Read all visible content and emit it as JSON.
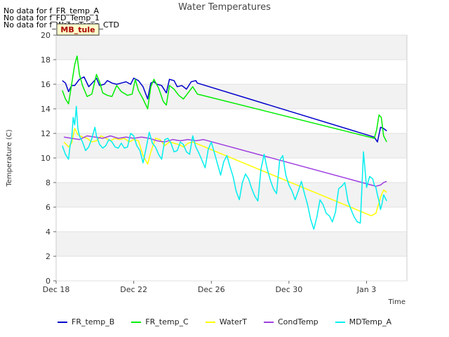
{
  "no_data_messages": [
    "No data for f_FR_temp_A",
    "No data for f_FD_Temp_1",
    "No data for f_WaterTemp_CTD"
  ],
  "badge": {
    "text": "MB_tule",
    "bg_color": "#ffffcc",
    "border_color": "#333333",
    "text_color": "#aa0000"
  },
  "chart_data": {
    "type": "line",
    "title": "Water Temperatures",
    "xlabel": "Time",
    "ylabel": "Temperature (C)",
    "ylim": [
      0,
      20
    ],
    "xlim": [
      0,
      22.6
    ],
    "x_unit": "days since Dec 18",
    "yticks": [
      0,
      2,
      4,
      6,
      8,
      10,
      12,
      14,
      16,
      18,
      20
    ],
    "xticks": [
      {
        "value": 0,
        "label": "Dec 18"
      },
      {
        "value": 5,
        "label": "Dec 22"
      },
      {
        "value": 10,
        "label": "Dec 26"
      },
      {
        "value": 15,
        "label": "Dec 30"
      },
      {
        "value": 20,
        "label": "Jan 3"
      }
    ],
    "band_color": "#f2f2f2",
    "series": [
      {
        "name": "FR_temp_B",
        "color": "#0000cc",
        "x": [
          0.4,
          0.6,
          0.8,
          1.0,
          1.2,
          1.5,
          1.8,
          2.1,
          2.4,
          2.6,
          2.8,
          3.1,
          3.3,
          3.6,
          3.9,
          4.2,
          4.5,
          4.8,
          5.0,
          5.3,
          5.6,
          5.9,
          6.1,
          6.3,
          6.5,
          6.8,
          7.1,
          7.3,
          7.6,
          7.8,
          8.1,
          8.4,
          8.7,
          9.0,
          9.1,
          20.5,
          20.7,
          20.9,
          21.1,
          21.3
        ],
        "y": [
          16.3,
          16.1,
          15.4,
          15.9,
          15.9,
          16.4,
          16.6,
          15.8,
          16.2,
          16.5,
          15.9,
          16.0,
          16.3,
          16.1,
          16.0,
          16.1,
          16.2,
          16.0,
          16.5,
          16.3,
          15.8,
          14.8,
          16.1,
          16.2,
          16.0,
          15.9,
          15.3,
          16.4,
          16.3,
          15.8,
          15.9,
          15.6,
          16.2,
          16.3,
          16.1,
          11.7,
          11.3,
          12.5,
          12.4,
          12.2
        ]
      },
      {
        "name": "FR_temp_C",
        "color": "#00ee00",
        "x": [
          0.4,
          0.6,
          0.8,
          1.0,
          1.2,
          1.35,
          1.5,
          1.7,
          2.0,
          2.3,
          2.6,
          2.8,
          3.0,
          3.3,
          3.6,
          3.9,
          4.2,
          4.6,
          4.9,
          5.1,
          5.3,
          5.6,
          5.9,
          6.1,
          6.3,
          6.6,
          6.9,
          7.1,
          7.3,
          7.6,
          7.9,
          8.2,
          8.5,
          8.8,
          9.1,
          20.5,
          20.65,
          20.8,
          20.95,
          21.1,
          21.3
        ],
        "y": [
          15.5,
          14.8,
          14.4,
          16.0,
          17.6,
          18.3,
          16.8,
          15.9,
          15.0,
          15.2,
          16.8,
          16.2,
          15.3,
          15.1,
          15.0,
          15.9,
          15.4,
          15.1,
          15.2,
          16.4,
          15.5,
          14.8,
          14.0,
          15.8,
          16.4,
          15.7,
          14.6,
          14.3,
          15.9,
          15.6,
          15.1,
          14.8,
          15.3,
          15.8,
          15.2,
          11.6,
          12.3,
          13.5,
          13.3,
          11.8,
          11.3
        ]
      },
      {
        "name": "WaterT",
        "color": "#ffff00",
        "x": [
          0.5,
          0.8,
          1.0,
          1.2,
          1.4,
          1.7,
          2.0,
          2.3,
          2.6,
          2.9,
          3.2,
          3.5,
          3.8,
          4.1,
          4.4,
          4.7,
          5.0,
          5.3,
          5.6,
          5.9,
          6.1,
          6.4,
          6.7,
          7.0,
          7.3,
          7.6,
          7.9,
          8.2,
          8.5,
          8.8,
          9.2,
          20.3,
          20.6,
          20.9,
          21.1,
          21.3
        ],
        "y": [
          11.3,
          10.9,
          11.2,
          12.4,
          11.9,
          11.7,
          11.6,
          11.3,
          11.4,
          11.8,
          11.6,
          11.4,
          11.6,
          11.5,
          11.6,
          11.3,
          11.5,
          11.4,
          10.2,
          9.5,
          10.5,
          11.6,
          11.5,
          11.0,
          11.3,
          11.2,
          11.1,
          10.9,
          11.2,
          11.3,
          11.1,
          5.3,
          5.5,
          6.8,
          7.4,
          7.2
        ]
      },
      {
        "name": "CondTemp",
        "color": "#a040e0",
        "x": [
          0.5,
          1.0,
          1.5,
          2.0,
          2.5,
          3.0,
          3.5,
          4.0,
          4.5,
          5.0,
          5.5,
          6.0,
          6.5,
          7.0,
          7.5,
          8.0,
          8.5,
          9.0,
          9.5,
          20.3,
          20.6,
          20.9,
          21.1,
          21.3
        ],
        "y": [
          11.7,
          11.6,
          11.5,
          11.8,
          11.7,
          11.6,
          11.8,
          11.6,
          11.7,
          11.6,
          11.7,
          11.6,
          11.4,
          11.3,
          11.5,
          11.4,
          11.5,
          11.4,
          11.5,
          7.8,
          7.7,
          7.8,
          8.0,
          8.1
        ]
      },
      {
        "name": "MDTemp_A",
        "color": "#00eeee",
        "x": [
          0.4,
          0.6,
          0.8,
          0.9,
          1.0,
          1.1,
          1.2,
          1.3,
          1.4,
          1.5,
          1.7,
          1.9,
          2.1,
          2.3,
          2.5,
          2.6,
          2.8,
          3.0,
          3.2,
          3.4,
          3.6,
          3.8,
          4.0,
          4.2,
          4.4,
          4.6,
          4.8,
          5.0,
          5.2,
          5.4,
          5.6,
          5.8,
          6.0,
          6.2,
          6.4,
          6.6,
          6.8,
          7.0,
          7.2,
          7.4,
          7.6,
          7.8,
          8.0,
          8.2,
          8.4,
          8.6,
          8.8,
          9.0,
          9.2,
          9.4,
          9.6,
          9.8,
          10.0,
          10.2,
          10.4,
          10.6,
          10.8,
          11.0,
          11.2,
          11.4,
          11.6,
          11.8,
          12.0,
          12.2,
          12.4,
          12.6,
          12.8,
          13.0,
          13.2,
          13.4,
          13.6,
          13.8,
          14.0,
          14.2,
          14.4,
          14.6,
          14.8,
          15.0,
          15.2,
          15.4,
          15.6,
          15.8,
          16.0,
          16.2,
          16.4,
          16.6,
          16.8,
          17.0,
          17.2,
          17.4,
          17.6,
          17.8,
          18.0,
          18.2,
          18.4,
          18.6,
          18.8,
          19.0,
          19.2,
          19.4,
          19.6,
          19.8,
          20.0,
          20.2,
          20.4,
          20.5,
          20.6,
          20.7,
          20.8,
          20.9,
          21.0,
          21.1,
          21.3
        ],
        "y": [
          11.0,
          10.3,
          9.9,
          11.0,
          11.5,
          13.3,
          12.7,
          14.2,
          12.4,
          11.8,
          11.3,
          10.6,
          10.9,
          11.6,
          12.5,
          11.8,
          11.1,
          10.8,
          11.0,
          11.5,
          11.3,
          10.9,
          10.8,
          11.2,
          10.8,
          10.9,
          12.0,
          11.8,
          11.0,
          10.6,
          9.6,
          10.8,
          12.1,
          11.2,
          10.9,
          10.3,
          9.9,
          11.5,
          11.6,
          11.2,
          10.5,
          10.6,
          11.3,
          11.1,
          10.5,
          10.3,
          11.8,
          10.9,
          10.4,
          9.8,
          9.2,
          10.7,
          11.3,
          10.4,
          9.5,
          8.6,
          9.7,
          10.2,
          9.3,
          8.5,
          7.3,
          6.6,
          8.0,
          8.7,
          8.3,
          7.5,
          6.9,
          6.5,
          9.1,
          10.3,
          9.1,
          8.2,
          7.5,
          7.1,
          9.8,
          10.2,
          8.6,
          7.8,
          7.3,
          6.6,
          7.3,
          8.1,
          7.1,
          6.2,
          5.0,
          4.2,
          5.2,
          6.6,
          6.2,
          5.5,
          5.3,
          4.8,
          5.6,
          7.5,
          7.7,
          8.0,
          6.5,
          5.8,
          5.2,
          4.8,
          4.7,
          10.5,
          7.6,
          8.5,
          8.3,
          7.8,
          7.6,
          7.0,
          6.5,
          5.8,
          6.3,
          7.0,
          6.5
        ]
      }
    ]
  }
}
